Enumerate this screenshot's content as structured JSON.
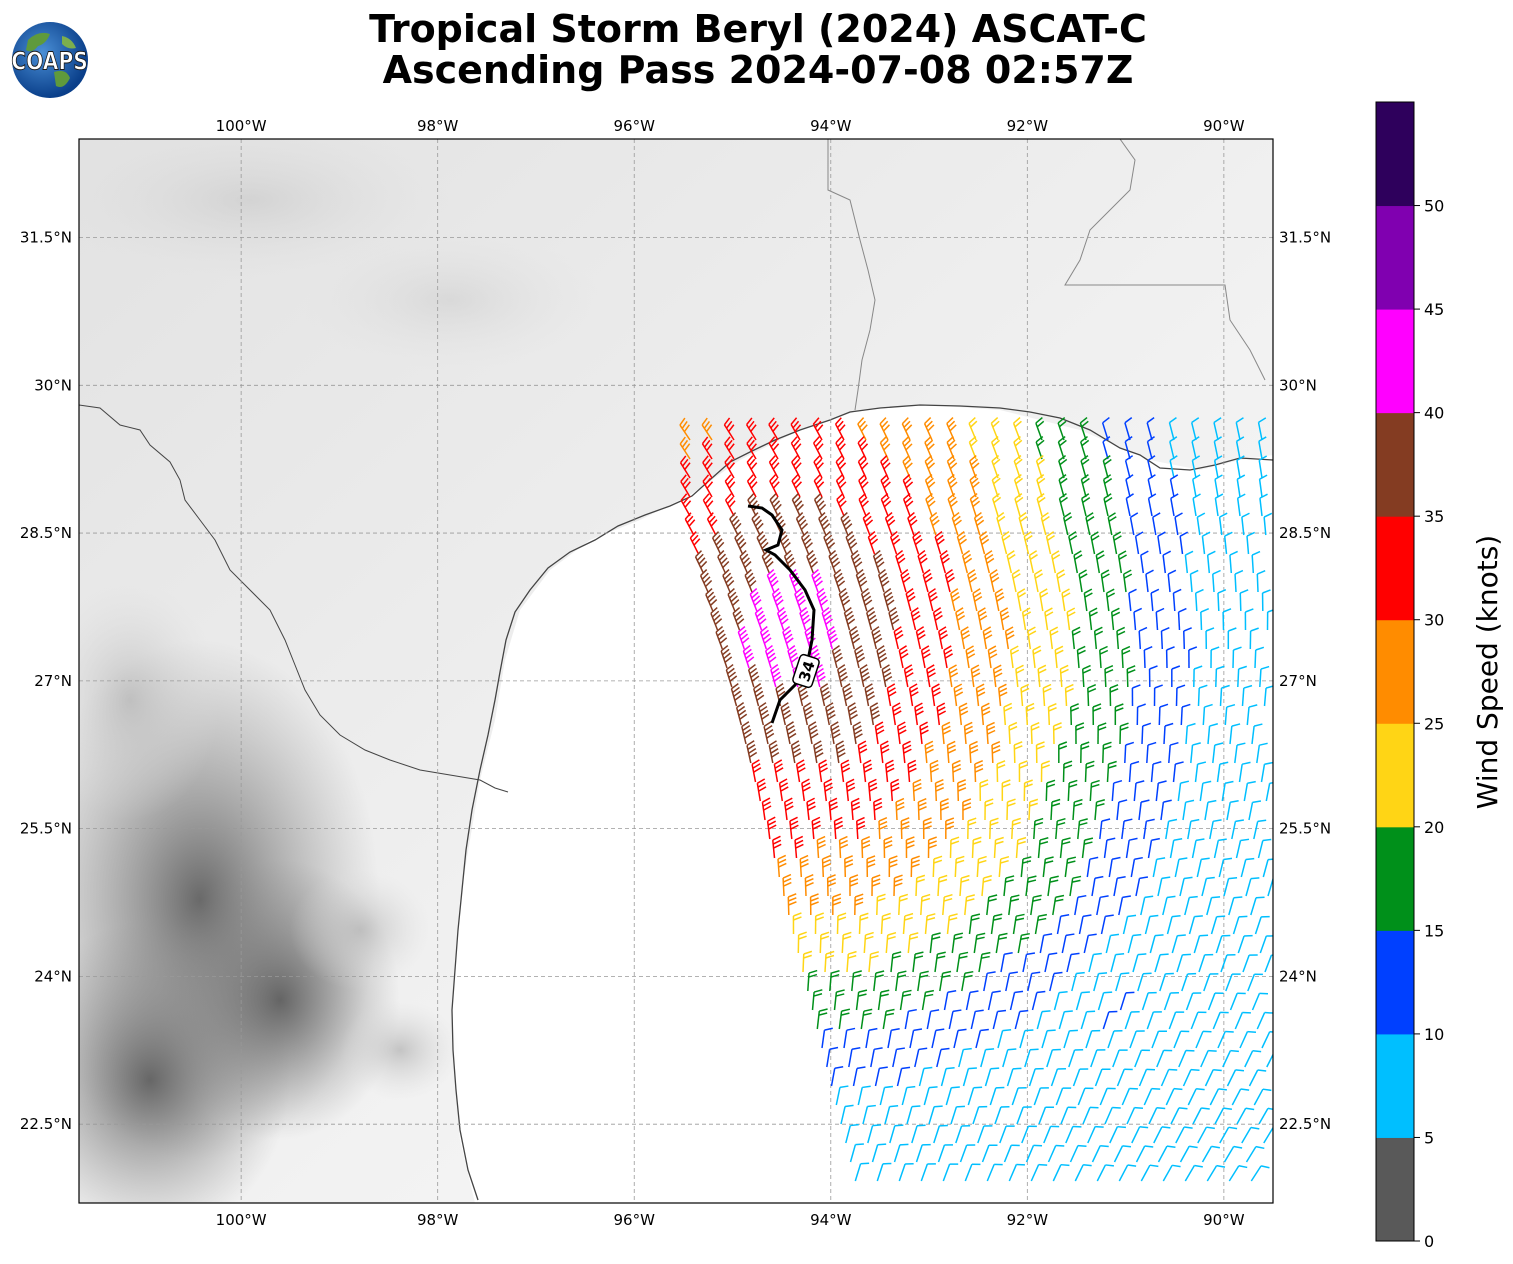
{
  "title": {
    "line1": "Tropical Storm Beryl (2024) ASCAT-C",
    "line2": "Ascending Pass 2024-07-08 02:57Z"
  },
  "logo": {
    "text": "COAPS"
  },
  "map": {
    "lon_ticks": [
      "100°W",
      "98°W",
      "96°W",
      "94°W",
      "92°W",
      "90°W"
    ],
    "lat_ticks": [
      "31.5°N",
      "30°N",
      "28.5°N",
      "27°N",
      "25.5°N",
      "24°N",
      "22.5°N"
    ],
    "lon_values": [
      -100,
      -98,
      -96,
      -94,
      -92,
      -90
    ],
    "lat_values": [
      31.5,
      30,
      28.5,
      27,
      25.5,
      24,
      22.5
    ],
    "extent": {
      "lon_min": -101.65,
      "lon_max": -89.5,
      "lat_min": 21.7,
      "lat_max": 32.5
    },
    "track_label": "34",
    "background": "grayscale satellite imagery"
  },
  "colorbar": {
    "label": "Wind Speed (knots)",
    "ticks": [
      "0",
      "5",
      "10",
      "15",
      "20",
      "25",
      "30",
      "35",
      "40",
      "45",
      "50"
    ],
    "bins": [
      {
        "min": 0,
        "max": 5,
        "color": "#595959"
      },
      {
        "min": 5,
        "max": 10,
        "color": "#00bfff"
      },
      {
        "min": 10,
        "max": 15,
        "color": "#0040ff"
      },
      {
        "min": 15,
        "max": 20,
        "color": "#00901a"
      },
      {
        "min": 20,
        "max": 25,
        "color": "#ffd515"
      },
      {
        "min": 25,
        "max": 30,
        "color": "#ff8c00"
      },
      {
        "min": 30,
        "max": 35,
        "color": "#ff0000"
      },
      {
        "min": 35,
        "max": 40,
        "color": "#843c22"
      },
      {
        "min": 40,
        "max": 45,
        "color": "#ff00ff"
      },
      {
        "min": 45,
        "max": 50,
        "color": "#8000b0"
      },
      {
        "min": 50,
        "max": 55,
        "color": "#2e005c"
      }
    ]
  }
}
